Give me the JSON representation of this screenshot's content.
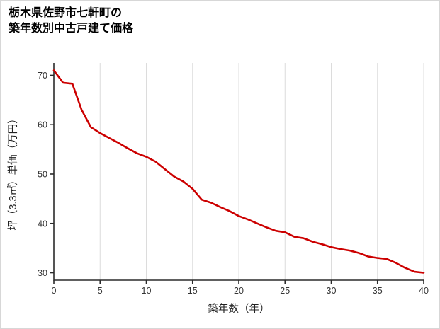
{
  "title": {
    "line1": "栃木県佐野市七軒町の",
    "line2": "築年数別中古戸建て価格"
  },
  "chart_data": {
    "type": "line",
    "title": "栃木県佐野市七軒町の築年数別中古戸建て価格",
    "xlabel": "築年数（年）",
    "ylabel": "坪（3.3㎡）単価（万円）",
    "x": [
      0,
      1,
      2,
      3,
      4,
      5,
      6,
      7,
      8,
      9,
      10,
      11,
      12,
      13,
      14,
      15,
      16,
      17,
      18,
      19,
      20,
      21,
      22,
      23,
      24,
      25,
      26,
      27,
      28,
      29,
      30,
      31,
      32,
      33,
      34,
      35,
      36,
      37,
      38,
      39,
      40
    ],
    "values": [
      71,
      68.5,
      68.3,
      63,
      59.5,
      58.3,
      57.3,
      56.3,
      55.2,
      54.2,
      53.5,
      52.5,
      51,
      49.5,
      48.5,
      47,
      44.8,
      44.2,
      43.3,
      42.5,
      41.5,
      40.8,
      40,
      39.2,
      38.5,
      38.2,
      37.3,
      37,
      36.3,
      35.8,
      35.2,
      34.8,
      34.5,
      34,
      33.3,
      33,
      32.8,
      32,
      31,
      30.2,
      30
    ],
    "x_ticks": [
      0,
      5,
      10,
      15,
      20,
      25,
      30,
      35,
      40
    ],
    "y_ticks": [
      30,
      40,
      50,
      60,
      70
    ],
    "xlim": [
      0,
      40
    ],
    "ylim": [
      28.5,
      72.5
    ],
    "grid": "vertical",
    "legend": "none",
    "line_color": "#cc0000",
    "grid_color": "#dcdcdc",
    "axis_color": "#2b2b2b"
  }
}
